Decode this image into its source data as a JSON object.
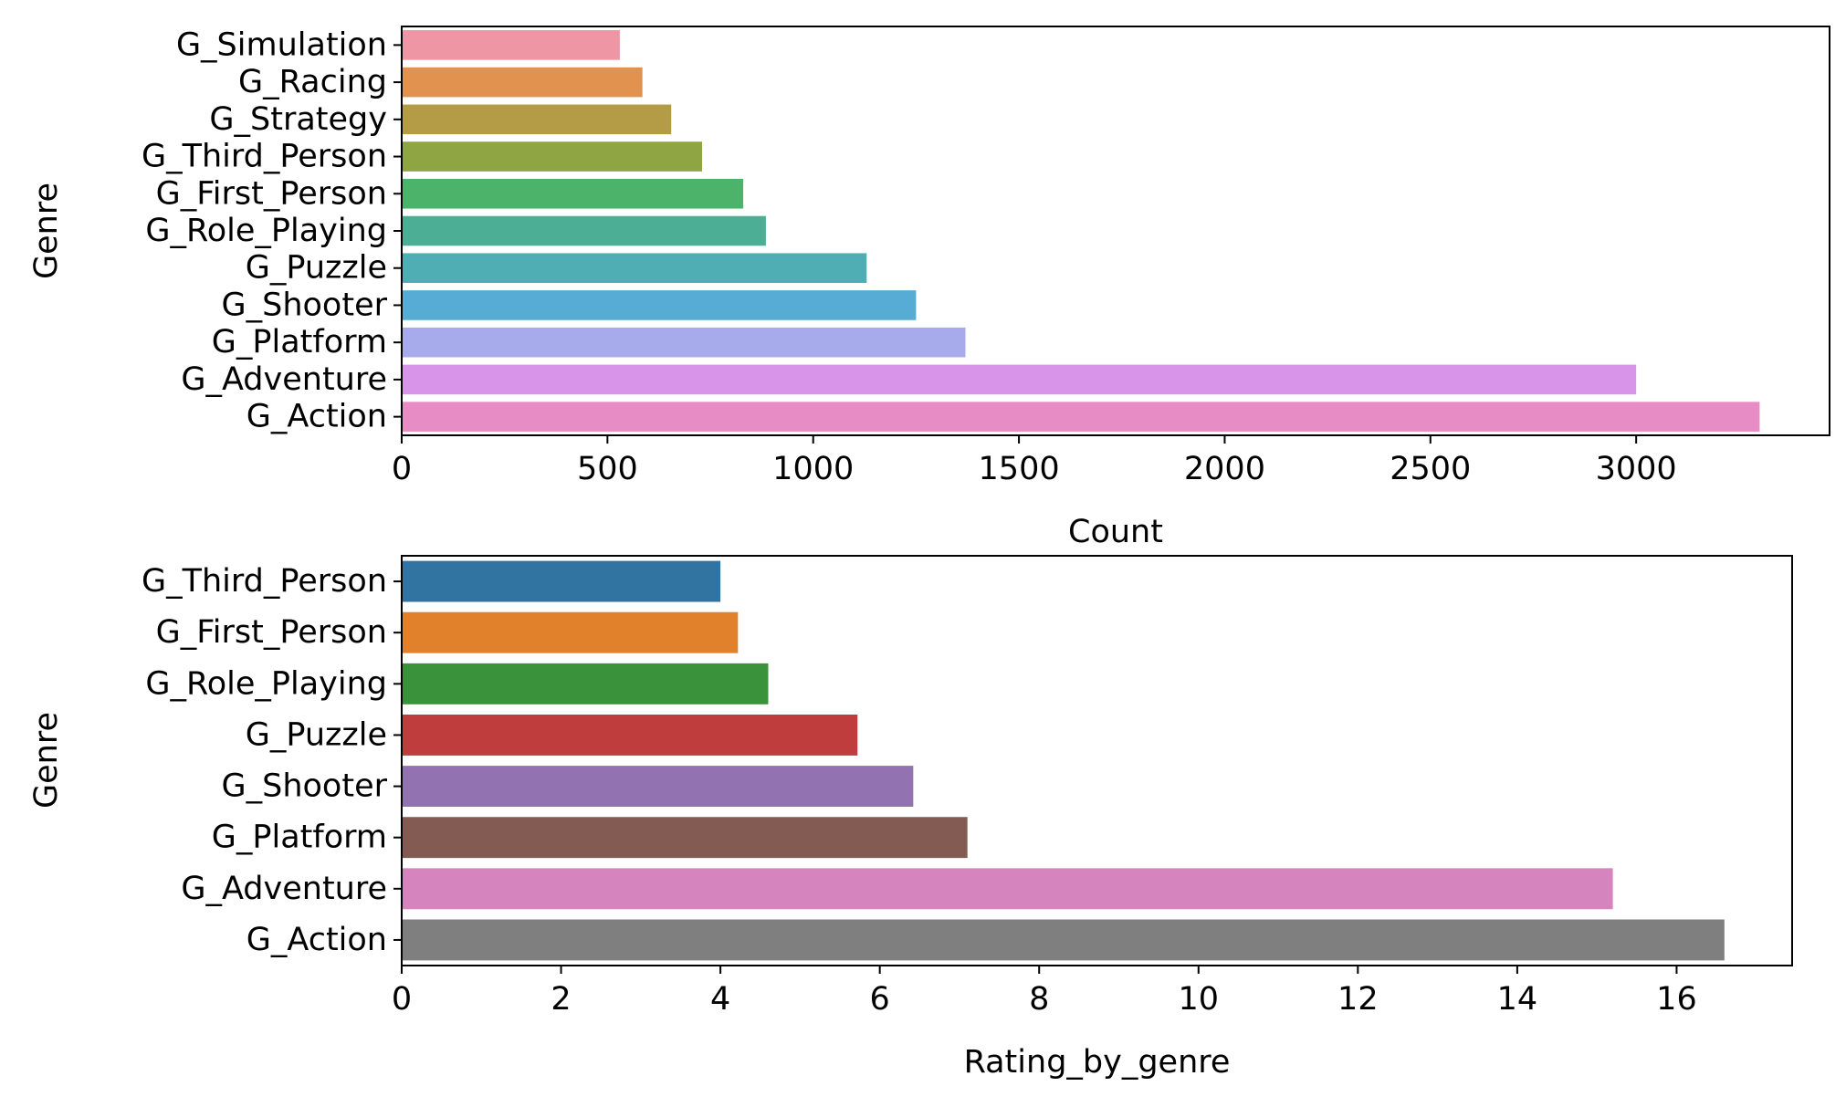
{
  "chart_data": [
    {
      "type": "bar",
      "orientation": "horizontal",
      "categories": [
        "G_Simulation",
        "G_Racing",
        "G_Strategy",
        "G_Third_Person",
        "G_First_Person",
        "G_Role_Playing",
        "G_Puzzle",
        "G_Shooter",
        "G_Platform",
        "G_Adventure",
        "G_Action"
      ],
      "values": [
        530,
        585,
        655,
        730,
        830,
        885,
        1130,
        1250,
        1370,
        3000,
        3300
      ],
      "colors": [
        "#ee96a3",
        "#e0924e",
        "#b49b45",
        "#8fa443",
        "#4bb36a",
        "#4cae94",
        "#4faeb3",
        "#57acd5",
        "#a8abeb",
        "#d794e8",
        "#e88cc6"
      ],
      "xlabel": "Count",
      "ylabel": "Genre",
      "xlim": [
        0,
        3470
      ],
      "xticks": [
        0,
        500,
        1000,
        1500,
        2000,
        2500,
        3000
      ],
      "grid": false
    },
    {
      "type": "bar",
      "orientation": "horizontal",
      "categories": [
        "G_Third_Person",
        "G_First_Person",
        "G_Role_Playing",
        "G_Puzzle",
        "G_Shooter",
        "G_Platform",
        "G_Adventure",
        "G_Action"
      ],
      "values": [
        4.0,
        4.22,
        4.6,
        5.72,
        6.42,
        7.1,
        15.2,
        16.6
      ],
      "colors": [
        "#3174a1",
        "#e1812c",
        "#3a923a",
        "#c03d3e",
        "#9372b2",
        "#845b53",
        "#d684bd",
        "#7f7f7f"
      ],
      "xlabel": "Rating_by_genre",
      "ylabel": "Genre",
      "xlim": [
        0,
        17.45
      ],
      "xticks": [
        0,
        2,
        4,
        6,
        8,
        10,
        12,
        14,
        16
      ],
      "grid": false
    }
  ]
}
